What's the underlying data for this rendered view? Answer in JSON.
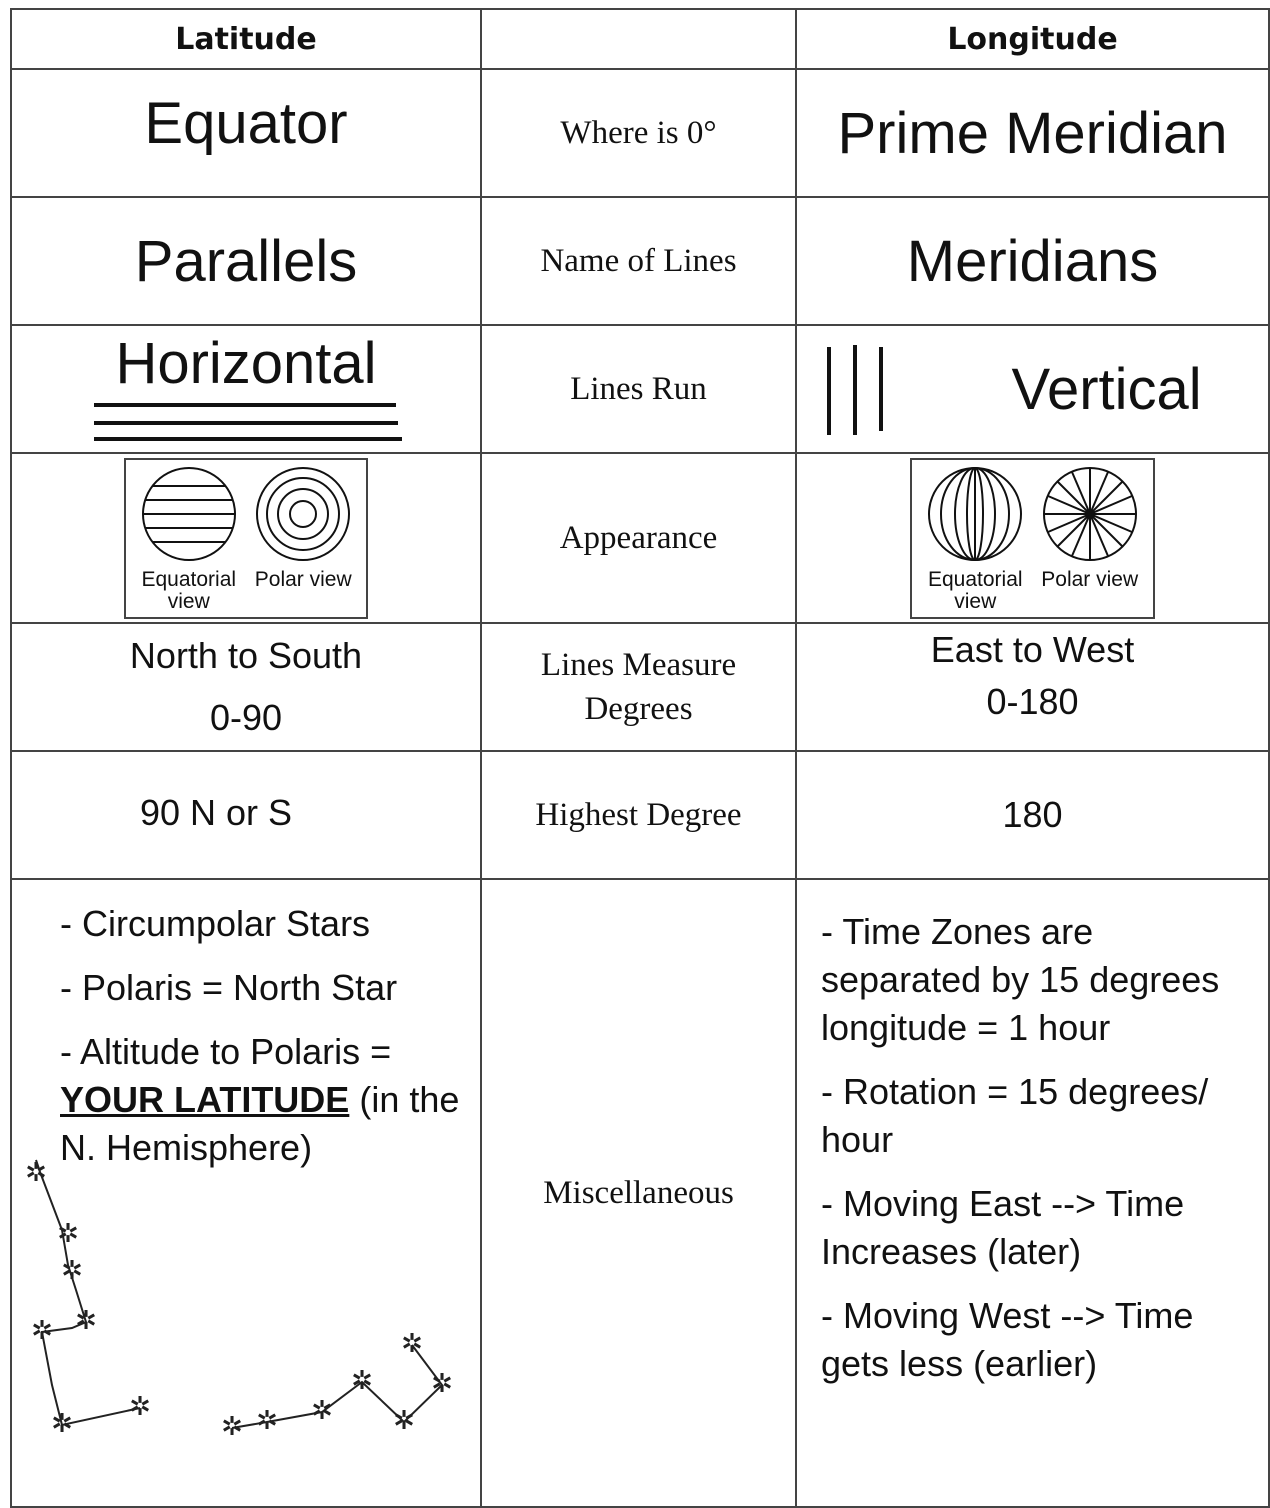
{
  "table": {
    "header": {
      "latitude": "Latitude",
      "longitude": "Longitude"
    },
    "rows": [
      {
        "label": "Where is 0°",
        "latitude": "Equator",
        "longitude": "Prime Meridian"
      },
      {
        "label": "Name of Lines",
        "latitude": "Parallels",
        "longitude": "Meridians"
      },
      {
        "label": "Lines Run",
        "latitude": "Horizontal",
        "longitude": "Vertical"
      },
      {
        "label": "Appearance",
        "latitude": {
          "captions": [
            "Equatorial view",
            "Polar view"
          ]
        },
        "longitude": {
          "captions": [
            "Equatorial view",
            "Polar view"
          ]
        }
      },
      {
        "label": "Lines Measure Degrees",
        "latitude": [
          "North to South",
          "0-90"
        ],
        "longitude": [
          "East to West",
          "0-180"
        ]
      },
      {
        "label": "Highest Degree",
        "latitude": "90 N or S",
        "longitude": "180"
      },
      {
        "label": "Miscellaneous",
        "latitude": [
          "- Circumpolar Stars",
          "- Polaris = North Star",
          {
            "text": "- Altitude to Polaris =",
            "emphasis": "YOUR LATITUDE",
            "rest": "(in the N. Hemisphere)"
          }
        ],
        "longitude": [
          "- Time Zones are separated by 15 degrees longitude = 1 hour",
          "- Rotation = 15 degrees/ hour",
          "- Moving East --> Time Increases (later)",
          "- Moving West --> Time gets less (earlier)"
        ]
      }
    ]
  }
}
